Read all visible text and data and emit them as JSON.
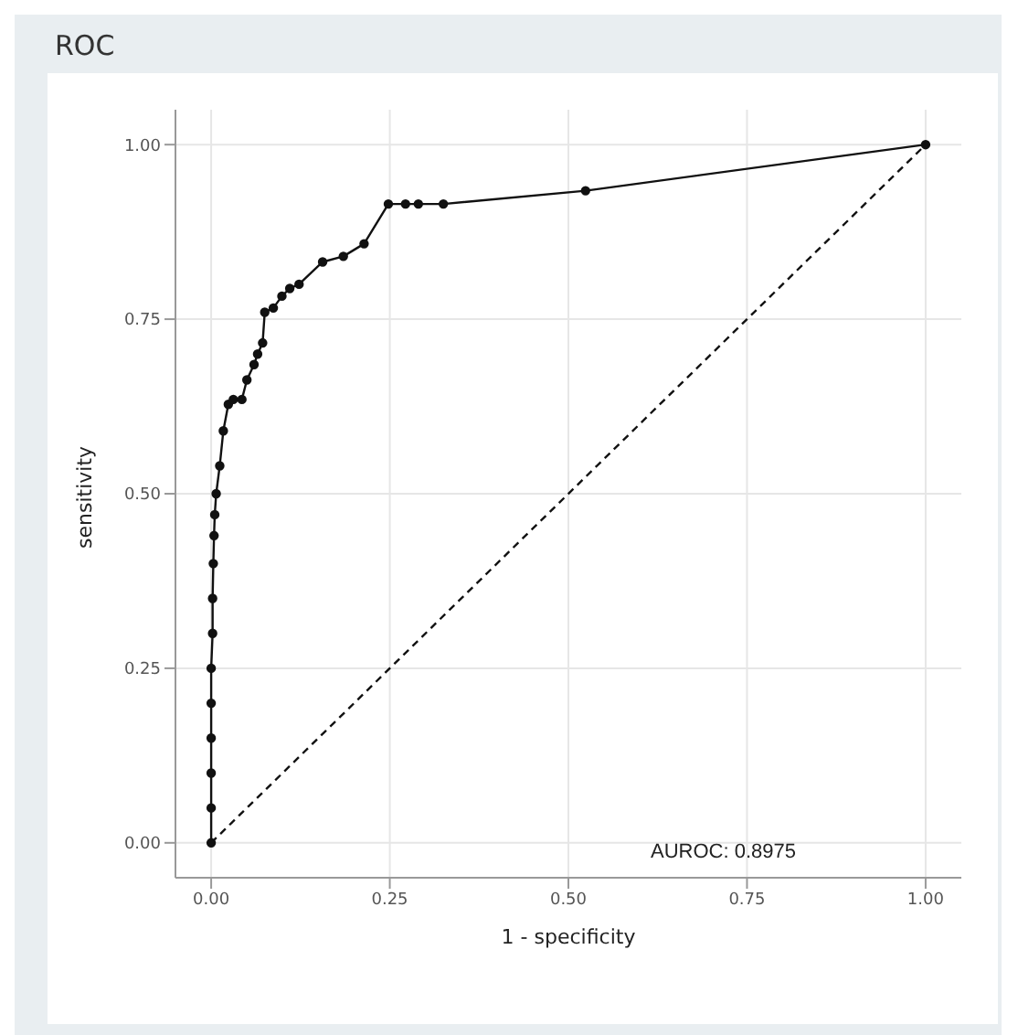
{
  "chart_data": {
    "type": "line",
    "title": "ROC",
    "xlabel": "1 - specificity",
    "ylabel": "sensitivity",
    "xlim": [
      -0.05,
      1.05
    ],
    "ylim": [
      -0.05,
      1.05
    ],
    "xticks": [
      {
        "value": 0,
        "label": "0.00"
      },
      {
        "value": 0.25,
        "label": "0.25"
      },
      {
        "value": 0.5,
        "label": "0.50"
      },
      {
        "value": 0.75,
        "label": "0.75"
      },
      {
        "value": 1,
        "label": "1.00"
      }
    ],
    "yticks": [
      {
        "value": 0,
        "label": "0.00"
      },
      {
        "value": 0.25,
        "label": "0.25"
      },
      {
        "value": 0.5,
        "label": "0.50"
      },
      {
        "value": 0.75,
        "label": "0.75"
      },
      {
        "value": 1,
        "label": "1.00"
      }
    ],
    "grid": true,
    "annotations": [
      "AUROC: 0.8975"
    ],
    "series": [
      {
        "color": "#111111",
        "marker": "circle",
        "line_style": "solid",
        "x": [
          0,
          0,
          0,
          0,
          0,
          0,
          0.002,
          0.002,
          0.003,
          0.004,
          0.005,
          0.007,
          0.012,
          0.017,
          0.024,
          0.031,
          0.043,
          0.05,
          0.06,
          0.065,
          0.072,
          0.075,
          0.087,
          0.099,
          0.11,
          0.123,
          0.156,
          0.185,
          0.214,
          0.248,
          0.272,
          0.29,
          0.325,
          0.524,
          1
        ],
        "values": [
          0,
          0.05,
          0.1,
          0.15,
          0.2,
          0.25,
          0.3,
          0.35,
          0.4,
          0.44,
          0.47,
          0.5,
          0.54,
          0.59,
          0.628,
          0.635,
          0.635,
          0.663,
          0.685,
          0.7,
          0.716,
          0.76,
          0.766,
          0.783,
          0.794,
          0.8,
          0.832,
          0.84,
          0.858,
          0.915,
          0.915,
          0.915,
          0.915,
          0.934,
          1
        ]
      },
      {
        "color": "#111111",
        "marker": "none",
        "line_style": "dashed",
        "x": [
          0,
          1
        ],
        "values": [
          0,
          1
        ]
      }
    ]
  }
}
